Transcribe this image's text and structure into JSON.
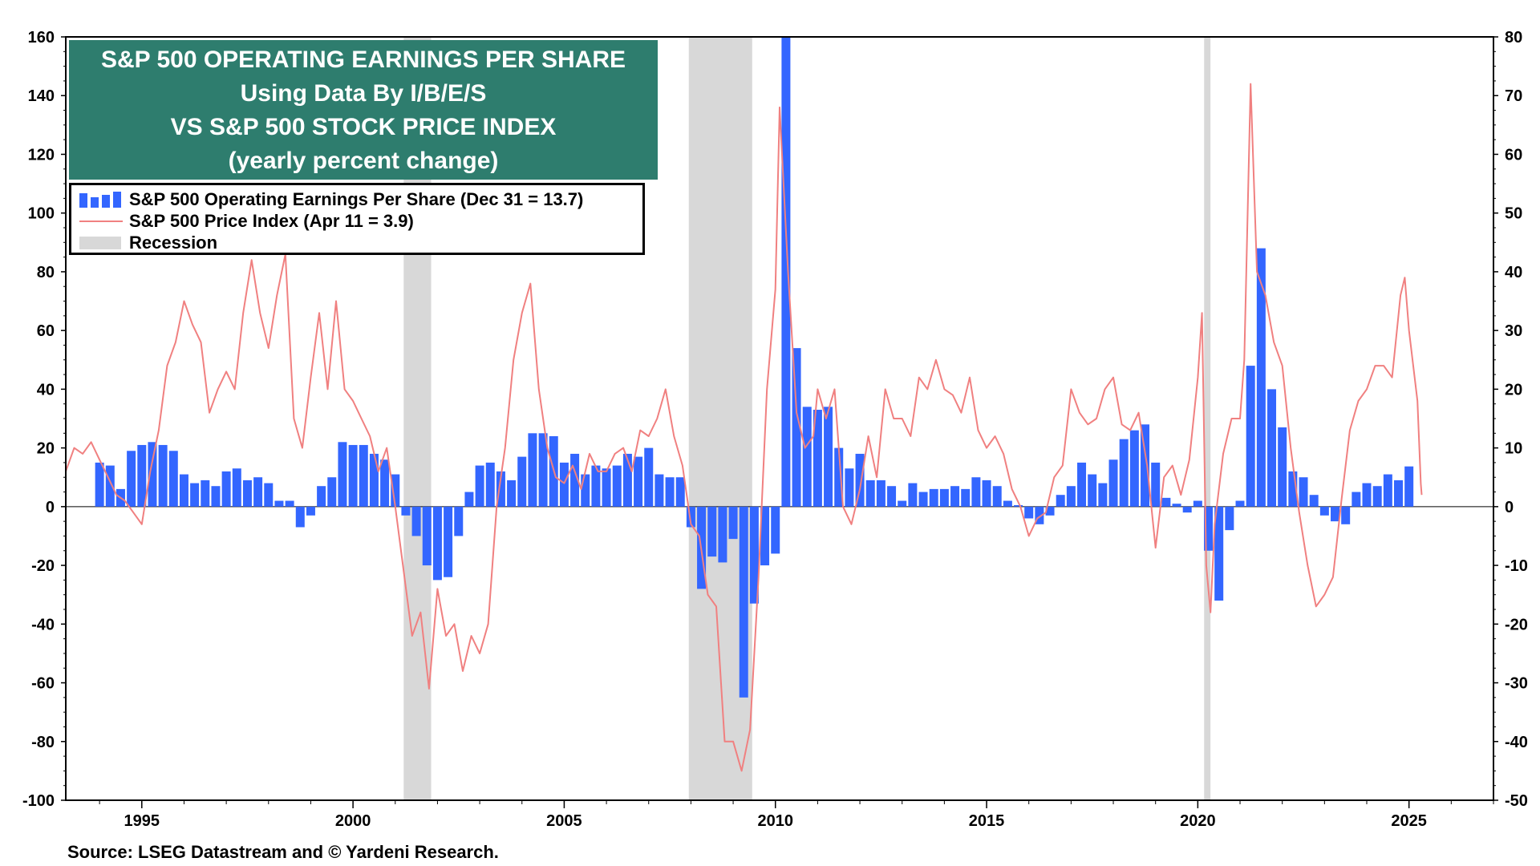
{
  "title": {
    "line1": "S&P 500 OPERATING EARNINGS PER SHARE",
    "line2": "Using Data By I/B/E/S",
    "line3": "VS S&P 500 STOCK PRICE INDEX",
    "line4": "(yearly percent change)"
  },
  "legend": {
    "eps": "S&P 500 Operating Earnings Per Share (Dec 31 = 13.7)",
    "price": "S&P 500 Price Index  (Apr 11 = 3.9)",
    "recession": "Recession"
  },
  "source": "Source: LSEG Datastream and © Yardeni Research.",
  "colors": {
    "bars": "#3366ff",
    "line": "#f08080",
    "recession": "#d8d8d8",
    "title_bg": "#2e7d6e"
  },
  "chart_data": {
    "type": "bar+line",
    "x_range": [
      1993.2,
      2027.0
    ],
    "x_ticks": [
      1995,
      2000,
      2005,
      2010,
      2015,
      2020,
      2025
    ],
    "y_left": {
      "range": [
        -100,
        160
      ],
      "ticks": [
        -100,
        -80,
        -60,
        -40,
        -20,
        0,
        20,
        40,
        60,
        80,
        100,
        120,
        140,
        160
      ]
    },
    "y_right": {
      "range": [
        -50,
        80
      ],
      "ticks": [
        -50,
        -40,
        -30,
        -20,
        -10,
        0,
        10,
        20,
        30,
        40,
        50,
        60,
        70,
        80
      ]
    },
    "recessions": [
      [
        2001.2,
        2001.85
      ],
      [
        2007.95,
        2009.45
      ],
      [
        2020.15,
        2020.3
      ]
    ],
    "eps_series": {
      "name": "S&P 500 Operating Earnings Per Share",
      "axis": "left",
      "points": [
        [
          1994.0,
          15
        ],
        [
          1994.25,
          14
        ],
        [
          1994.5,
          6
        ],
        [
          1994.75,
          19
        ],
        [
          1995.0,
          21
        ],
        [
          1995.25,
          22
        ],
        [
          1995.5,
          21
        ],
        [
          1995.75,
          19
        ],
        [
          1996.0,
          11
        ],
        [
          1996.25,
          8
        ],
        [
          1996.5,
          9
        ],
        [
          1996.75,
          7
        ],
        [
          1997.0,
          12
        ],
        [
          1997.25,
          13
        ],
        [
          1997.5,
          9
        ],
        [
          1997.75,
          10
        ],
        [
          1998.0,
          8
        ],
        [
          1998.25,
          2
        ],
        [
          1998.5,
          2
        ],
        [
          1998.75,
          -7
        ],
        [
          1999.0,
          -3
        ],
        [
          1999.25,
          7
        ],
        [
          1999.5,
          10
        ],
        [
          1999.75,
          22
        ],
        [
          2000.0,
          21
        ],
        [
          2000.25,
          21
        ],
        [
          2000.5,
          18
        ],
        [
          2000.75,
          16
        ],
        [
          2001.0,
          11
        ],
        [
          2001.25,
          -3
        ],
        [
          2001.5,
          -10
        ],
        [
          2001.75,
          -20
        ],
        [
          2002.0,
          -25
        ],
        [
          2002.25,
          -24
        ],
        [
          2002.5,
          -10
        ],
        [
          2002.75,
          5
        ],
        [
          2003.0,
          14
        ],
        [
          2003.25,
          15
        ],
        [
          2003.5,
          12
        ],
        [
          2003.75,
          9
        ],
        [
          2004.0,
          17
        ],
        [
          2004.25,
          25
        ],
        [
          2004.5,
          25
        ],
        [
          2004.75,
          24
        ],
        [
          2005.0,
          15
        ],
        [
          2005.25,
          18
        ],
        [
          2005.5,
          11
        ],
        [
          2005.75,
          14
        ],
        [
          2006.0,
          13
        ],
        [
          2006.25,
          14
        ],
        [
          2006.5,
          18
        ],
        [
          2006.75,
          17
        ],
        [
          2007.0,
          20
        ],
        [
          2007.25,
          11
        ],
        [
          2007.5,
          10
        ],
        [
          2007.75,
          10
        ],
        [
          2008.0,
          -7
        ],
        [
          2008.25,
          -28
        ],
        [
          2008.5,
          -17
        ],
        [
          2008.75,
          -19
        ],
        [
          2009.0,
          -11
        ],
        [
          2009.25,
          -65
        ],
        [
          2009.5,
          -33
        ],
        [
          2009.75,
          -20
        ],
        [
          2010.0,
          -16
        ],
        [
          2010.25,
          160
        ],
        [
          2010.5,
          54
        ],
        [
          2010.75,
          34
        ],
        [
          2011.0,
          33
        ],
        [
          2011.25,
          34
        ],
        [
          2011.5,
          20
        ],
        [
          2011.75,
          13
        ],
        [
          2012.0,
          18
        ],
        [
          2012.25,
          9
        ],
        [
          2012.5,
          9
        ],
        [
          2012.75,
          7
        ],
        [
          2013.0,
          2
        ],
        [
          2013.25,
          8
        ],
        [
          2013.5,
          5
        ],
        [
          2013.75,
          6
        ],
        [
          2014.0,
          6
        ],
        [
          2014.25,
          7
        ],
        [
          2014.5,
          6
        ],
        [
          2014.75,
          10
        ],
        [
          2015.0,
          9
        ],
        [
          2015.25,
          7
        ],
        [
          2015.5,
          2
        ],
        [
          2015.75,
          0.5
        ],
        [
          2016.0,
          -4
        ],
        [
          2016.25,
          -6
        ],
        [
          2016.5,
          -3
        ],
        [
          2016.75,
          4
        ],
        [
          2017.0,
          7
        ],
        [
          2017.25,
          15
        ],
        [
          2017.5,
          11
        ],
        [
          2017.75,
          8
        ],
        [
          2018.0,
          16
        ],
        [
          2018.25,
          23
        ],
        [
          2018.5,
          26
        ],
        [
          2018.75,
          28
        ],
        [
          2019.0,
          15
        ],
        [
          2019.25,
          3
        ],
        [
          2019.5,
          1
        ],
        [
          2019.75,
          -2
        ],
        [
          2020.0,
          2
        ],
        [
          2020.25,
          -15
        ],
        [
          2020.5,
          -32
        ],
        [
          2020.75,
          -8
        ],
        [
          2021.0,
          2
        ],
        [
          2021.25,
          48
        ],
        [
          2021.5,
          88
        ],
        [
          2021.75,
          40
        ],
        [
          2022.0,
          27
        ],
        [
          2022.25,
          12
        ],
        [
          2022.5,
          10
        ],
        [
          2022.75,
          4
        ],
        [
          2023.0,
          -3
        ],
        [
          2023.25,
          -5
        ],
        [
          2023.5,
          -6
        ],
        [
          2023.75,
          5
        ],
        [
          2024.0,
          8
        ],
        [
          2024.25,
          7
        ],
        [
          2024.5,
          11
        ],
        [
          2024.75,
          9
        ],
        [
          2025.0,
          13.7
        ]
      ]
    },
    "price_series": {
      "name": "S&P 500 Price Index",
      "axis": "right",
      "points": [
        [
          1993.2,
          6
        ],
        [
          1993.4,
          10
        ],
        [
          1993.6,
          9
        ],
        [
          1993.8,
          11
        ],
        [
          1994.0,
          8
        ],
        [
          1994.2,
          5
        ],
        [
          1994.4,
          2
        ],
        [
          1994.6,
          1
        ],
        [
          1994.8,
          -1
        ],
        [
          1995.0,
          -3
        ],
        [
          1995.2,
          6
        ],
        [
          1995.4,
          13
        ],
        [
          1995.6,
          24
        ],
        [
          1995.8,
          28
        ],
        [
          1996.0,
          35
        ],
        [
          1996.2,
          31
        ],
        [
          1996.4,
          28
        ],
        [
          1996.6,
          16
        ],
        [
          1996.8,
          20
        ],
        [
          1997.0,
          23
        ],
        [
          1997.2,
          20
        ],
        [
          1997.4,
          33
        ],
        [
          1997.6,
          42
        ],
        [
          1997.8,
          33
        ],
        [
          1998.0,
          27
        ],
        [
          1998.2,
          36
        ],
        [
          1998.4,
          43
        ],
        [
          1998.6,
          15
        ],
        [
          1998.8,
          10
        ],
        [
          1999.0,
          22
        ],
        [
          1999.2,
          33
        ],
        [
          1999.4,
          20
        ],
        [
          1999.6,
          35
        ],
        [
          1999.8,
          20
        ],
        [
          2000.0,
          18
        ],
        [
          2000.2,
          15
        ],
        [
          2000.4,
          12
        ],
        [
          2000.6,
          6
        ],
        [
          2000.8,
          10
        ],
        [
          2001.0,
          0
        ],
        [
          2001.2,
          -11
        ],
        [
          2001.4,
          -22
        ],
        [
          2001.6,
          -18
        ],
        [
          2001.8,
          -31
        ],
        [
          2002.0,
          -14
        ],
        [
          2002.2,
          -22
        ],
        [
          2002.4,
          -20
        ],
        [
          2002.6,
          -28
        ],
        [
          2002.8,
          -22
        ],
        [
          2003.0,
          -25
        ],
        [
          2003.2,
          -20
        ],
        [
          2003.4,
          0
        ],
        [
          2003.6,
          10
        ],
        [
          2003.8,
          25
        ],
        [
          2004.0,
          33
        ],
        [
          2004.2,
          38
        ],
        [
          2004.4,
          20
        ],
        [
          2004.6,
          10
        ],
        [
          2004.8,
          5
        ],
        [
          2005.0,
          4
        ],
        [
          2005.2,
          7
        ],
        [
          2005.4,
          3
        ],
        [
          2005.6,
          9
        ],
        [
          2005.8,
          6
        ],
        [
          2006.0,
          6
        ],
        [
          2006.2,
          9
        ],
        [
          2006.4,
          10
        ],
        [
          2006.6,
          6
        ],
        [
          2006.8,
          13
        ],
        [
          2007.0,
          12
        ],
        [
          2007.2,
          15
        ],
        [
          2007.4,
          20
        ],
        [
          2007.6,
          12
        ],
        [
          2007.8,
          7
        ],
        [
          2008.0,
          -3
        ],
        [
          2008.2,
          -5
        ],
        [
          2008.4,
          -15
        ],
        [
          2008.6,
          -17
        ],
        [
          2008.8,
          -40
        ],
        [
          2009.0,
          -40
        ],
        [
          2009.2,
          -45
        ],
        [
          2009.4,
          -38
        ],
        [
          2009.6,
          -12
        ],
        [
          2009.8,
          20
        ],
        [
          2010.0,
          37
        ],
        [
          2010.1,
          68
        ],
        [
          2010.3,
          40
        ],
        [
          2010.5,
          16
        ],
        [
          2010.7,
          10
        ],
        [
          2010.9,
          12
        ],
        [
          2011.0,
          20
        ],
        [
          2011.2,
          15
        ],
        [
          2011.4,
          20
        ],
        [
          2011.6,
          0
        ],
        [
          2011.8,
          -3
        ],
        [
          2012.0,
          3
        ],
        [
          2012.2,
          12
        ],
        [
          2012.4,
          5
        ],
        [
          2012.6,
          20
        ],
        [
          2012.8,
          15
        ],
        [
          2013.0,
          15
        ],
        [
          2013.2,
          12
        ],
        [
          2013.4,
          22
        ],
        [
          2013.6,
          20
        ],
        [
          2013.8,
          25
        ],
        [
          2014.0,
          20
        ],
        [
          2014.2,
          19
        ],
        [
          2014.4,
          16
        ],
        [
          2014.6,
          22
        ],
        [
          2014.8,
          13
        ],
        [
          2015.0,
          10
        ],
        [
          2015.2,
          12
        ],
        [
          2015.4,
          9
        ],
        [
          2015.6,
          3
        ],
        [
          2015.8,
          0
        ],
        [
          2016.0,
          -5
        ],
        [
          2016.2,
          -2
        ],
        [
          2016.4,
          -1
        ],
        [
          2016.6,
          5
        ],
        [
          2016.8,
          7
        ],
        [
          2017.0,
          20
        ],
        [
          2017.2,
          16
        ],
        [
          2017.4,
          14
        ],
        [
          2017.6,
          15
        ],
        [
          2017.8,
          20
        ],
        [
          2018.0,
          22
        ],
        [
          2018.2,
          14
        ],
        [
          2018.4,
          13
        ],
        [
          2018.6,
          16
        ],
        [
          2018.8,
          7
        ],
        [
          2019.0,
          -7
        ],
        [
          2019.2,
          5
        ],
        [
          2019.4,
          7
        ],
        [
          2019.6,
          2
        ],
        [
          2019.8,
          8
        ],
        [
          2020.0,
          22
        ],
        [
          2020.1,
          33
        ],
        [
          2020.2,
          -10
        ],
        [
          2020.3,
          -18
        ],
        [
          2020.4,
          -3
        ],
        [
          2020.6,
          9
        ],
        [
          2020.8,
          15
        ],
        [
          2021.0,
          15
        ],
        [
          2021.1,
          25
        ],
        [
          2021.25,
          72
        ],
        [
          2021.4,
          40
        ],
        [
          2021.6,
          36
        ],
        [
          2021.8,
          28
        ],
        [
          2022.0,
          24
        ],
        [
          2022.2,
          10
        ],
        [
          2022.4,
          -1
        ],
        [
          2022.6,
          -10
        ],
        [
          2022.8,
          -17
        ],
        [
          2023.0,
          -15
        ],
        [
          2023.2,
          -12
        ],
        [
          2023.4,
          1
        ],
        [
          2023.6,
          13
        ],
        [
          2023.8,
          18
        ],
        [
          2024.0,
          20
        ],
        [
          2024.2,
          24
        ],
        [
          2024.4,
          24
        ],
        [
          2024.6,
          22
        ],
        [
          2024.8,
          36
        ],
        [
          2024.9,
          39
        ],
        [
          2025.0,
          30
        ],
        [
          2025.2,
          18
        ],
        [
          2025.3,
          2
        ],
        [
          2025.28,
          3.9
        ]
      ]
    }
  }
}
